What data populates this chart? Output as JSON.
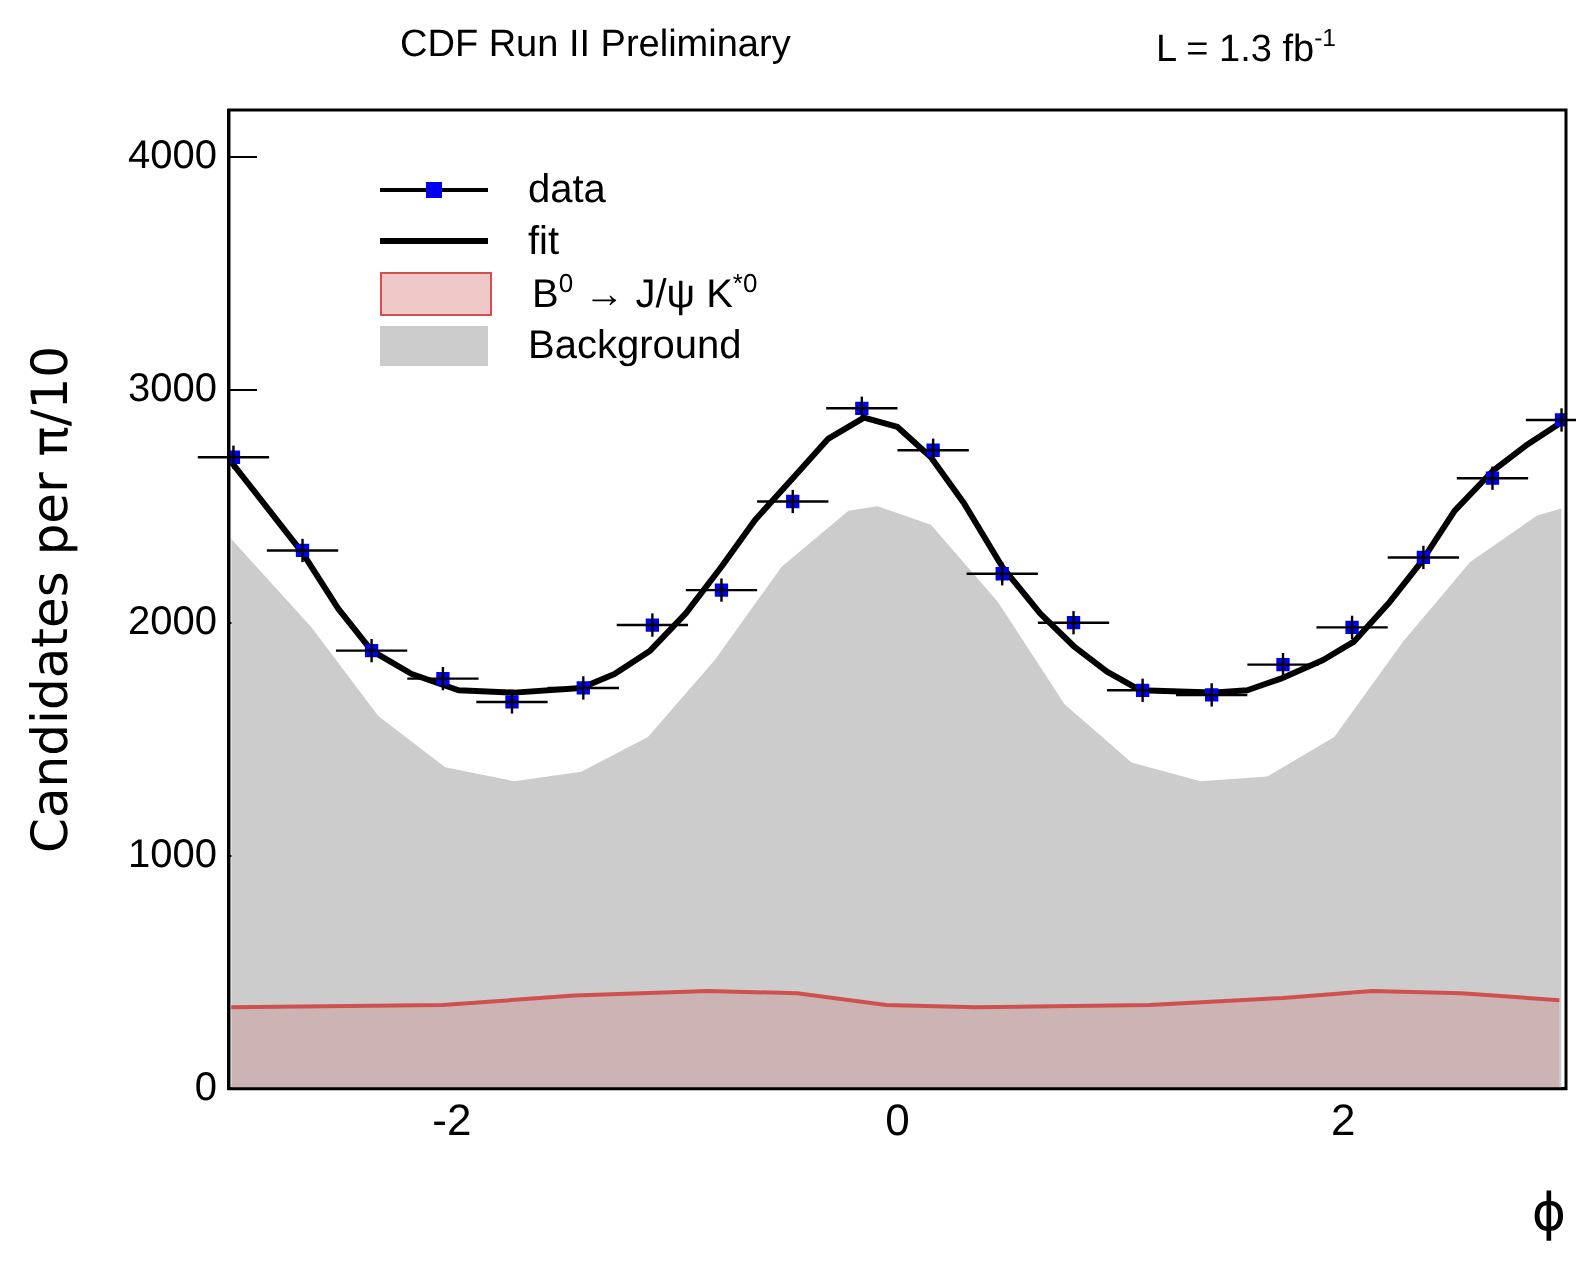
{
  "chart_data": {
    "type": "scatter",
    "title": "CDF Run II Preliminary",
    "annotations": [
      "L = 1.3 fb$^{-1}$"
    ],
    "xlabel": "ϕ",
    "ylabel": "Candidates per π/10",
    "xlim": [
      -3,
      3
    ],
    "xticks": [
      -2,
      0,
      2
    ],
    "ylim": [
      0,
      4200
    ],
    "yticks": [
      0,
      1000,
      2000,
      3000,
      4000
    ],
    "grid": false,
    "legend": "top left",
    "series": [
      {
        "name": "data",
        "type": "scatter",
        "marker": "square",
        "color": "#0000ee",
        "x": [
          -2.98,
          -2.67,
          -2.36,
          -2.04,
          -1.73,
          -1.41,
          -1.1,
          -0.79,
          -0.47,
          -0.16,
          0.16,
          0.47,
          0.79,
          1.1,
          1.41,
          1.73,
          2.04,
          2.36,
          2.67,
          2.98
        ],
        "values": [
          2710,
          2310,
          1880,
          1760,
          1660,
          1720,
          1990,
          2140,
          2520,
          2920,
          2740,
          2210,
          2000,
          1710,
          1690,
          1820,
          1980,
          2280,
          2620,
          2870
        ],
        "errors": [
          50,
          50,
          50,
          50,
          50,
          50,
          50,
          50,
          50,
          50,
          50,
          50,
          50,
          50,
          50,
          50,
          50,
          50,
          50,
          50
        ],
        "xerrors": [
          0.16,
          0.16,
          0.16,
          0.16,
          0.16,
          0.16,
          0.16,
          0.16,
          0.16,
          0.16,
          0.16,
          0.16,
          0.16,
          0.16,
          0.16,
          0.16,
          0.16,
          0.16,
          0.16,
          0.16
        ]
      },
      {
        "name": "fit",
        "type": "line",
        "marker": "none",
        "color": "#000000",
        "x": [
          -2.99,
          -2.67,
          -2.51,
          -2.36,
          -2.18,
          -1.97,
          -1.72,
          -1.42,
          -1.27,
          -1.11,
          -0.95,
          -0.79,
          -0.64,
          -0.47,
          -0.31,
          -0.15,
          0,
          0.15,
          0.3,
          0.47,
          0.64,
          0.79,
          0.94,
          1.09,
          1.41,
          1.57,
          1.72,
          1.91,
          2.05,
          2.21,
          2.35,
          2.5,
          2.67,
          2.82,
          2.98
        ],
        "values": [
          2690,
          2300,
          2060,
          1880,
          1780,
          1710,
          1700,
          1720,
          1780,
          1880,
          2040,
          2240,
          2440,
          2620,
          2790,
          2880,
          2840,
          2710,
          2510,
          2240,
          2040,
          1900,
          1790,
          1710,
          1700,
          1710,
          1760,
          1840,
          1920,
          2090,
          2260,
          2480,
          2650,
          2760,
          2860
        ]
      },
      {
        "name": "B$^{0}$ → J/ψ K$^{*0}$",
        "type": "area",
        "marker": "none",
        "color": "#d05050",
        "x": [
          -2.99,
          -2.04,
          -1.45,
          -0.85,
          -0.45,
          -0.05,
          0.35,
          1.13,
          1.73,
          2.13,
          2.53,
          2.97
        ],
        "values": [
          350,
          360,
          400,
          420,
          410,
          360,
          350,
          360,
          390,
          420,
          410,
          380
        ]
      },
      {
        "name": "Background",
        "type": "area",
        "marker": "none",
        "color": "#cccccc",
        "x": [
          -2.99,
          -2.63,
          -2.33,
          -2.03,
          -1.72,
          -1.42,
          -1.12,
          -0.82,
          -0.52,
          -0.22,
          -0.09,
          0.15,
          0.45,
          0.75,
          1.05,
          1.36,
          1.66,
          1.96,
          2.27,
          2.57,
          2.87,
          2.98
        ],
        "values": [
          2360,
          1980,
          1600,
          1380,
          1320,
          1360,
          1510,
          1840,
          2240,
          2480,
          2500,
          2420,
          2090,
          1650,
          1400,
          1320,
          1340,
          1510,
          1920,
          2260,
          2460,
          2490
        ]
      }
    ]
  }
}
